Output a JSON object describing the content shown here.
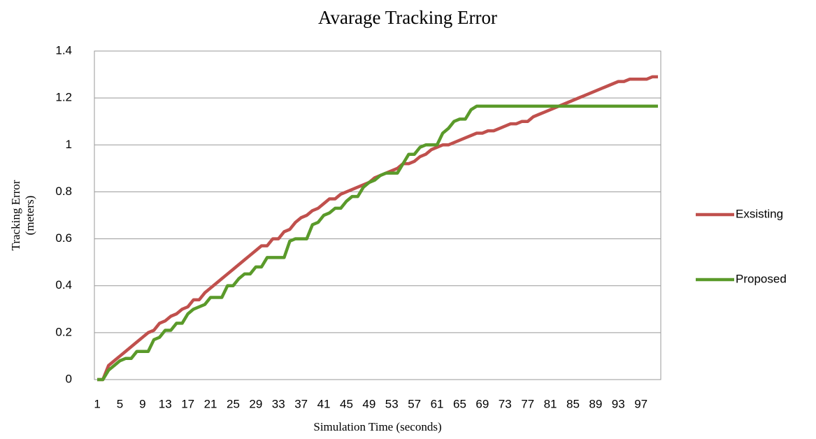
{
  "chart_data": {
    "type": "line",
    "title": "Avarage Tracking Error",
    "x_label": "Simulation Time (seconds)",
    "y_label": [
      "Tracking Error",
      "(meters)"
    ],
    "categories": [
      1,
      null,
      null,
      null,
      5,
      null,
      null,
      null,
      9,
      null,
      null,
      null,
      13,
      null,
      null,
      null,
      17,
      null,
      null,
      null,
      21,
      null,
      null,
      null,
      25,
      null,
      null,
      null,
      29,
      null,
      null,
      null,
      33,
      null,
      null,
      null,
      37,
      null,
      null,
      null,
      41,
      null,
      null,
      null,
      45,
      null,
      null,
      null,
      49,
      null,
      null,
      null,
      53,
      null,
      null,
      null,
      57,
      null,
      null,
      null,
      61,
      null,
      null,
      null,
      65,
      null,
      null,
      null,
      69,
      null,
      null,
      null,
      73,
      null,
      null,
      null,
      77,
      null,
      null,
      null,
      81,
      null,
      null,
      null,
      85,
      null,
      null,
      null,
      89,
      null,
      null,
      null,
      93,
      null,
      null,
      null,
      97,
      null,
      null,
      null
    ],
    "series": [
      {
        "name": "Exsisting",
        "color": "#c0504d",
        "values": [
          0,
          0,
          0.06,
          0.08,
          0.1,
          0.12,
          0.14,
          0.16,
          0.18,
          0.2,
          0.21,
          0.24,
          0.25,
          0.27,
          0.28,
          0.3,
          0.31,
          0.34,
          0.34,
          0.37,
          0.39,
          0.41,
          0.43,
          0.45,
          0.47,
          0.49,
          0.51,
          0.53,
          0.55,
          0.57,
          0.57,
          0.6,
          0.6,
          0.63,
          0.64,
          0.67,
          0.69,
          0.7,
          0.72,
          0.73,
          0.75,
          0.77,
          0.77,
          0.79,
          0.8,
          0.81,
          0.82,
          0.83,
          0.84,
          0.86,
          0.87,
          0.88,
          0.89,
          0.9,
          0.92,
          0.92,
          0.93,
          0.95,
          0.96,
          0.98,
          0.99,
          1.0,
          1.0,
          1.01,
          1.02,
          1.03,
          1.04,
          1.05,
          1.05,
          1.06,
          1.06,
          1.07,
          1.08,
          1.09,
          1.09,
          1.1,
          1.1,
          1.12,
          1.13,
          1.14,
          1.15,
          1.16,
          1.17,
          1.18,
          1.19,
          1.2,
          1.21,
          1.22,
          1.23,
          1.24,
          1.25,
          1.26,
          1.27,
          1.27,
          1.28,
          1.28,
          1.28,
          1.28,
          1.29,
          1.29
        ]
      },
      {
        "name": "Proposed",
        "color": "#5a9a2a",
        "values": [
          0,
          0,
          0.04,
          0.06,
          0.08,
          0.09,
          0.09,
          0.12,
          0.12,
          0.12,
          0.17,
          0.18,
          0.21,
          0.21,
          0.24,
          0.24,
          0.28,
          0.3,
          0.31,
          0.32,
          0.35,
          0.35,
          0.35,
          0.4,
          0.4,
          0.43,
          0.45,
          0.45,
          0.48,
          0.48,
          0.52,
          0.52,
          0.52,
          0.52,
          0.59,
          0.6,
          0.6,
          0.6,
          0.66,
          0.67,
          0.7,
          0.71,
          0.73,
          0.73,
          0.76,
          0.78,
          0.78,
          0.82,
          0.84,
          0.85,
          0.87,
          0.88,
          0.88,
          0.88,
          0.92,
          0.96,
          0.96,
          0.99,
          1.0,
          1.0,
          1.0,
          1.05,
          1.07,
          1.1,
          1.11,
          1.11,
          1.15,
          1.165,
          1.165,
          1.165,
          1.165,
          1.165,
          1.165,
          1.165,
          1.165,
          1.165,
          1.165,
          1.165,
          1.165,
          1.165,
          1.165,
          1.165,
          1.165,
          1.165,
          1.165,
          1.165,
          1.165,
          1.165,
          1.165,
          1.165,
          1.165,
          1.165,
          1.165,
          1.165,
          1.165,
          1.165,
          1.165,
          1.165,
          1.165,
          1.165
        ]
      }
    ],
    "ylim": [
      0,
      1.4
    ],
    "yticks": [
      0,
      0.2,
      0.4,
      0.6,
      0.8,
      1,
      1.2,
      1.4
    ],
    "grid": true,
    "legend": "right"
  }
}
